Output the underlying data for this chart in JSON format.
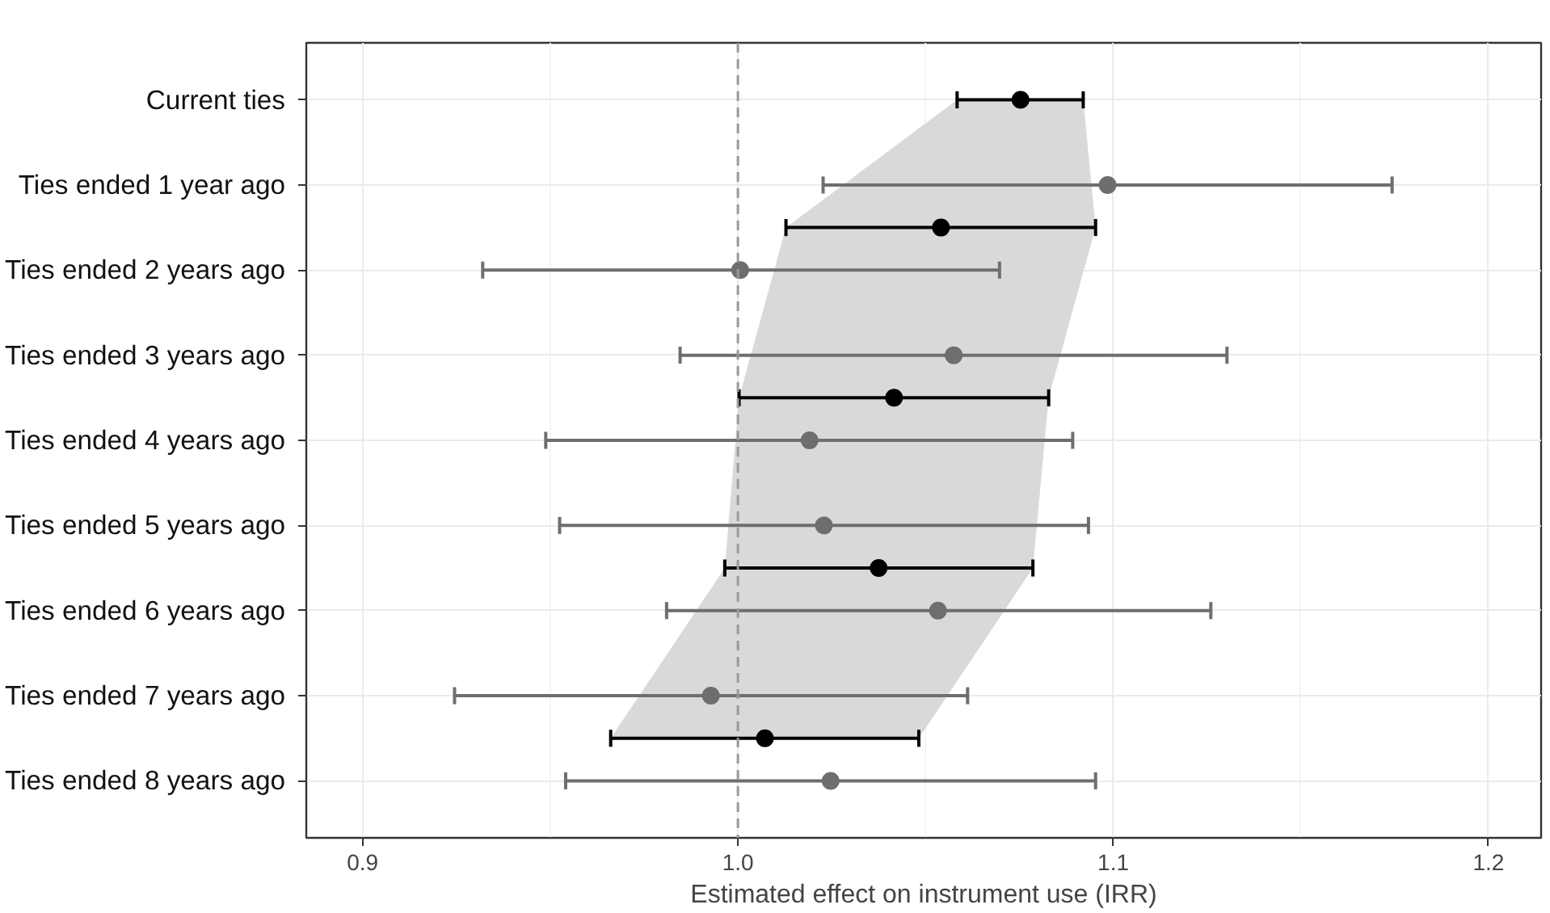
{
  "chart_data": {
    "type": "scatter",
    "orientation": "horizontal",
    "xlabel": "Estimated effect on instrument use (IRR)",
    "xlim": [
      0.885,
      1.214
    ],
    "xticks": [
      0.9,
      {
        "value": 1.0,
        "label": "1.0"
      },
      1.1,
      1.2
    ],
    "categories": [
      "Current ties",
      null,
      "Ties ended 1 year ago",
      null,
      "Ties ended 2 years ago",
      null,
      "Ties ended 3 years ago",
      null,
      "Ties ended 4 years ago",
      null,
      "Ties ended 5 years ago",
      null,
      "Ties ended 6 years ago",
      null,
      "Ties ended 7 years ago",
      null,
      "Ties ended 8 years ago"
    ],
    "grid": true,
    "marker": "circle",
    "ref_lines": [
      {
        "axis": "x",
        "value": 1.0,
        "color": "#999999",
        "line_style": "dashed"
      }
    ],
    "series": [
      {
        "color": "#6e6e6e",
        "values": [
          null,
          null,
          1.0985,
          null,
          1.0006,
          null,
          1.0575,
          null,
          1.0191,
          null,
          1.0229,
          null,
          1.0533,
          null,
          0.9928,
          null,
          1.0247
        ],
        "errors": [
          null,
          null,
          [
            1.0227,
            1.1743
          ],
          null,
          [
            0.932,
            1.0697
          ],
          null,
          [
            0.9846,
            1.1303
          ],
          null,
          [
            0.9488,
            1.0892
          ],
          null,
          [
            0.9525,
            1.0934
          ],
          null,
          [
            0.981,
            1.126
          ],
          null,
          [
            0.9245,
            1.0612
          ],
          null,
          [
            0.9541,
            1.0953
          ]
        ]
      },
      {
        "color": "#000000",
        "values": [
          1.0753,
          null,
          null,
          1.0541,
          null,
          null,
          null,
          1.0416,
          null,
          null,
          null,
          1.0375,
          null,
          null,
          null,
          1.0072,
          null
        ],
        "errors": [
          [
            1.0584,
            1.092
          ],
          null,
          null,
          [
            1.0128,
            1.0953
          ],
          null,
          null,
          null,
          [
            1.0003,
            1.0828
          ],
          null,
          null,
          null,
          [
            0.9965,
            1.0786
          ],
          null,
          null,
          null,
          [
            0.9661,
            1.0482
          ],
          null
        ],
        "lower": [
          1.0584,
          null,
          null,
          1.0128,
          null,
          null,
          null,
          1.0003,
          null,
          null,
          null,
          0.9965,
          null,
          null,
          null,
          0.9661,
          null
        ],
        "upper": [
          1.092,
          null,
          null,
          1.0953,
          null,
          null,
          null,
          1.0828,
          null,
          null,
          null,
          1.0786,
          null,
          null,
          null,
          1.0482,
          null
        ]
      }
    ]
  }
}
